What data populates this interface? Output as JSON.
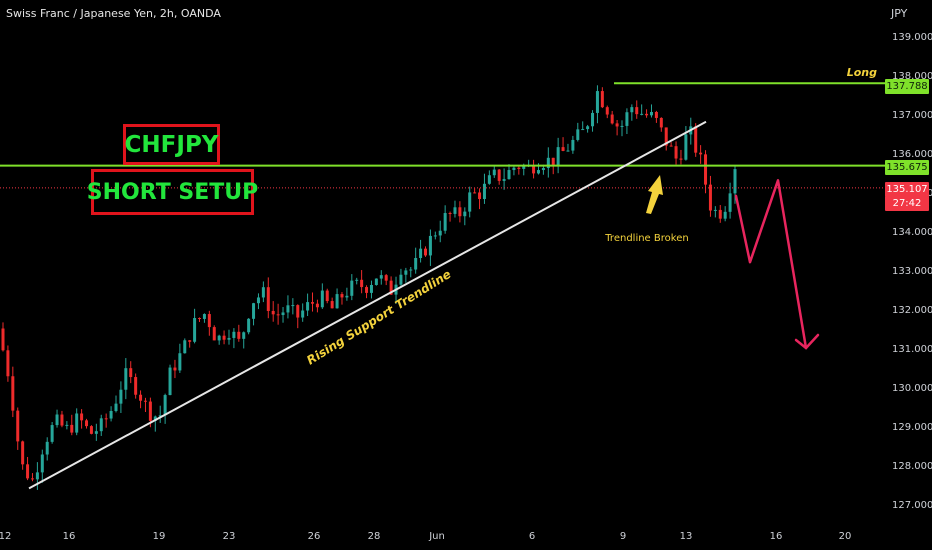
{
  "header": {
    "title": "Swiss Franc / Japanese Yen, 2h, OANDA",
    "currency": "JPY"
  },
  "setup_box": {
    "line1": "CHFJPY",
    "line2": "SHORT SETUP"
  },
  "annotations": {
    "long": "Long",
    "trendline_broken": "Trendline Broken",
    "rising_support": "Rising Support Trendline"
  },
  "price_tags": {
    "long_level": "137.788",
    "resistance_level": "135.675",
    "current_price": "135.107",
    "countdown": "27:42"
  },
  "colors": {
    "bull": "#26a69a",
    "bear": "#ef2b2b",
    "level_line": "#7fe12a",
    "current_price": "#f23645",
    "projection": "#e8255e",
    "note": "#f3d23c",
    "box_border": "#e0141c",
    "box_text": "#22e63c"
  },
  "chart_data": {
    "type": "candlestick",
    "symbol": "CHFJPY",
    "timeframe": "2h",
    "y_axis": {
      "ticks": [
        "139.000",
        "138.000",
        "137.000",
        "136.000",
        "135.000",
        "134.000",
        "133.000",
        "132.000",
        "131.000",
        "130.000",
        "129.000",
        "128.000",
        "127.000"
      ],
      "range": [
        126.85,
        139.25
      ]
    },
    "x_axis": {
      "ticks": [
        "12",
        "16",
        "19",
        "23",
        "26",
        "28",
        "Jun",
        "6",
        "9",
        "13",
        "16",
        "20"
      ]
    },
    "horizontal_levels": [
      {
        "price": 137.788,
        "label": "Long"
      },
      {
        "price": 135.675
      },
      {
        "price": 135.107,
        "style": "dotted"
      }
    ],
    "trendline": {
      "from_price": 127.4,
      "to_price": 136.8,
      "label": "Rising Support Trendline"
    },
    "price_path": [
      131.5,
      130.2,
      128.0,
      127.6,
      128.6,
      129.1,
      128.9,
      129.2,
      128.8,
      129.0,
      129.5,
      130.3,
      130.0,
      129.4,
      129.2,
      130.4,
      130.9,
      131.6,
      131.9,
      131.2,
      131.5,
      131.1,
      132.2,
      132.4,
      131.8,
      132.0,
      131.8,
      132.1,
      132.3,
      132.0,
      132.4,
      132.6,
      132.6,
      132.9,
      132.4,
      133.1,
      133.0,
      133.5,
      134.0,
      134.4,
      134.4,
      134.9,
      135.0,
      135.4,
      135.4,
      135.7,
      135.6,
      135.8,
      135.8,
      136.0,
      136.3,
      136.6,
      137.6,
      137.1,
      136.6,
      137.2,
      137.0,
      136.9,
      136.3,
      135.8,
      136.6,
      135.8,
      134.5,
      134.5,
      135.7
    ],
    "projection_path": [
      134.9,
      133.2,
      135.3,
      131.0
    ]
  }
}
